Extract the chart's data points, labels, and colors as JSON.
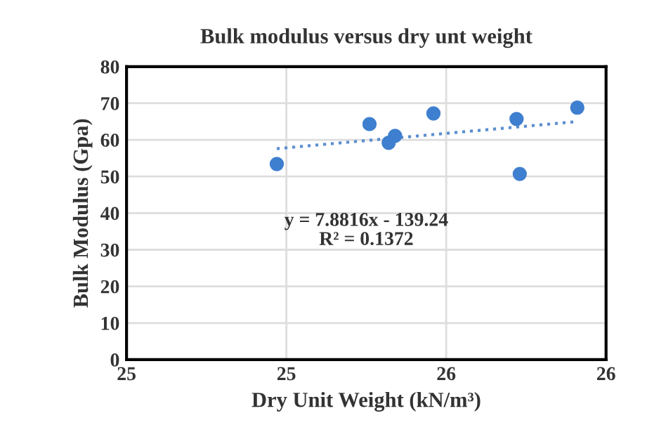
{
  "chart_data": {
    "type": "scatter",
    "title": "Bulk modulus versus dry unt weight",
    "xlabel": "Dry Unit Weight (kN/m³)",
    "ylabel": "Bulk Modulus (Gpa)",
    "series": [
      {
        "color": "#3f7fd0",
        "marker": "circle",
        "x": [
          24.97,
          25.26,
          25.32,
          25.34,
          25.46,
          25.72,
          25.73,
          25.91
        ],
        "values": [
          53.4,
          64.3,
          59.2,
          61.1,
          67.2,
          65.7,
          50.7,
          68.8
        ]
      },
      {
        "type": "line",
        "color": "#5b8fd0",
        "line_style": "dotted",
        "marker": "none",
        "x": [
          24.97,
          25.91
        ],
        "values": [
          57.6,
          65.0
        ]
      }
    ],
    "annotations": [
      "y = 7.8816x - 139.24\nR² = 0.1372"
    ],
    "xlim": [
      24.5,
      26.0
    ],
    "xticks": [
      {
        "value": 24.5,
        "label": "25"
      },
      {
        "value": 25.0,
        "label": "25"
      },
      {
        "value": 25.5,
        "label": "26"
      },
      {
        "value": 26.0,
        "label": "26"
      }
    ],
    "ylim": [
      0,
      80
    ],
    "yticks": [
      0,
      10,
      20,
      30,
      40,
      50,
      60,
      70,
      80
    ],
    "grid": true
  }
}
